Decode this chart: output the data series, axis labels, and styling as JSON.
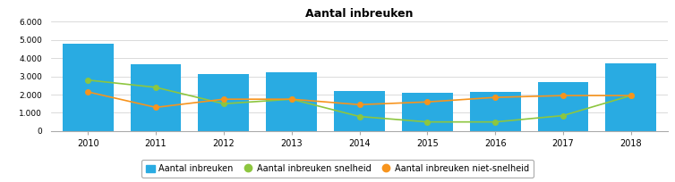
{
  "title": "Aantal inbreuken",
  "years": [
    2010,
    2011,
    2012,
    2013,
    2014,
    2015,
    2016,
    2017,
    2018
  ],
  "bar_values": [
    4800,
    3650,
    3150,
    3250,
    2200,
    2100,
    2150,
    2700,
    3700
  ],
  "line_snelheid": [
    2800,
    2400,
    1500,
    1750,
    800,
    500,
    500,
    850,
    1950
  ],
  "line_niet_snelheid": [
    2150,
    1300,
    1750,
    1750,
    1450,
    1600,
    1850,
    1950,
    1950
  ],
  "bar_color": "#29ABE2",
  "line_snelheid_color": "#8DC63F",
  "line_niet_snelheid_color": "#F7941D",
  "ylim": [
    0,
    6000
  ],
  "yticks": [
    0,
    1000,
    2000,
    3000,
    4000,
    5000,
    6000
  ],
  "background_color": "#ffffff",
  "legend_labels": [
    "Aantal inbreuken",
    "Aantal inbreuken snelheid",
    "Aantal inbreuken niet-snelheid"
  ]
}
